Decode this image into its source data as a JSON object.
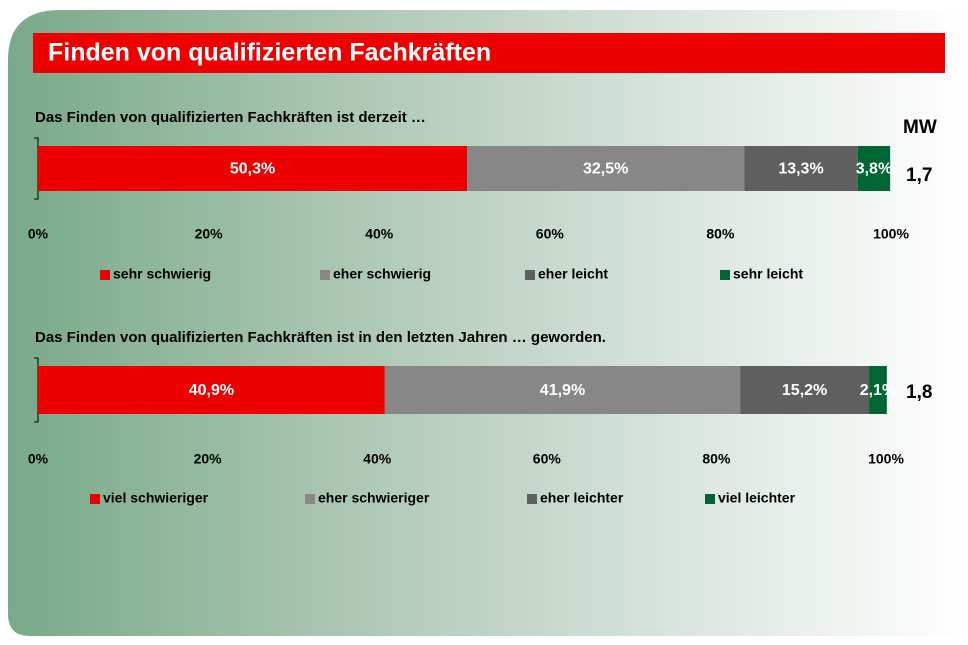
{
  "title": "Finden von qualifizierten Fachkräften",
  "mean_header": "MW",
  "chart_data": [
    {
      "type": "stacked-bar-horizontal",
      "subtitle": "Das Finden von qualifizierten Fachkräften ist derzeit …",
      "series": [
        {
          "name": "sehr schwierig",
          "color": "#ee0000",
          "values": [
            50.3
          ],
          "value_labels": [
            "50,3%"
          ]
        },
        {
          "name": "eher schwierig",
          "color": "#878787",
          "values": [
            32.5
          ],
          "value_labels": [
            "32,5%"
          ]
        },
        {
          "name": "eher leicht",
          "color": "#5f5f5f",
          "values": [
            13.3
          ],
          "value_labels": [
            "13,3%"
          ]
        },
        {
          "name": "sehr leicht",
          "color": "#006633",
          "values": [
            3.8
          ],
          "value_labels": [
            "3,8%"
          ]
        }
      ],
      "xlim": [
        0,
        100
      ],
      "xticks": [
        {
          "value": 0,
          "label": "0%"
        },
        {
          "value": 20,
          "label": "20%"
        },
        {
          "value": 40,
          "label": "40%"
        },
        {
          "value": 60,
          "label": "60%"
        },
        {
          "value": 80,
          "label": "80%"
        },
        {
          "value": 100,
          "label": "100%"
        }
      ],
      "mean": {
        "value": 1.7,
        "label": "1,7"
      }
    },
    {
      "type": "stacked-bar-horizontal",
      "subtitle": "Das Finden von qualifizierten Fachkräften ist in den letzten Jahren … geworden.",
      "series": [
        {
          "name": "viel schwieriger",
          "color": "#ee0000",
          "values": [
            40.9
          ],
          "value_labels": [
            "40,9%"
          ]
        },
        {
          "name": "eher schwieriger",
          "color": "#878787",
          "values": [
            41.9
          ],
          "value_labels": [
            "41,9%"
          ]
        },
        {
          "name": "eher leichter",
          "color": "#5f5f5f",
          "values": [
            15.2
          ],
          "value_labels": [
            "15,2%"
          ]
        },
        {
          "name": "viel leichter",
          "color": "#006633",
          "values": [
            2.1
          ],
          "value_labels": [
            "2,1%"
          ]
        }
      ],
      "xlim": [
        0,
        100
      ],
      "xticks": [
        {
          "value": 0,
          "label": "0%"
        },
        {
          "value": 20,
          "label": "20%"
        },
        {
          "value": 40,
          "label": "40%"
        },
        {
          "value": 60,
          "label": "60%"
        },
        {
          "value": 80,
          "label": "80%"
        },
        {
          "value": 100,
          "label": "100%"
        }
      ],
      "mean": {
        "value": 1.8,
        "label": "1,8"
      }
    }
  ]
}
